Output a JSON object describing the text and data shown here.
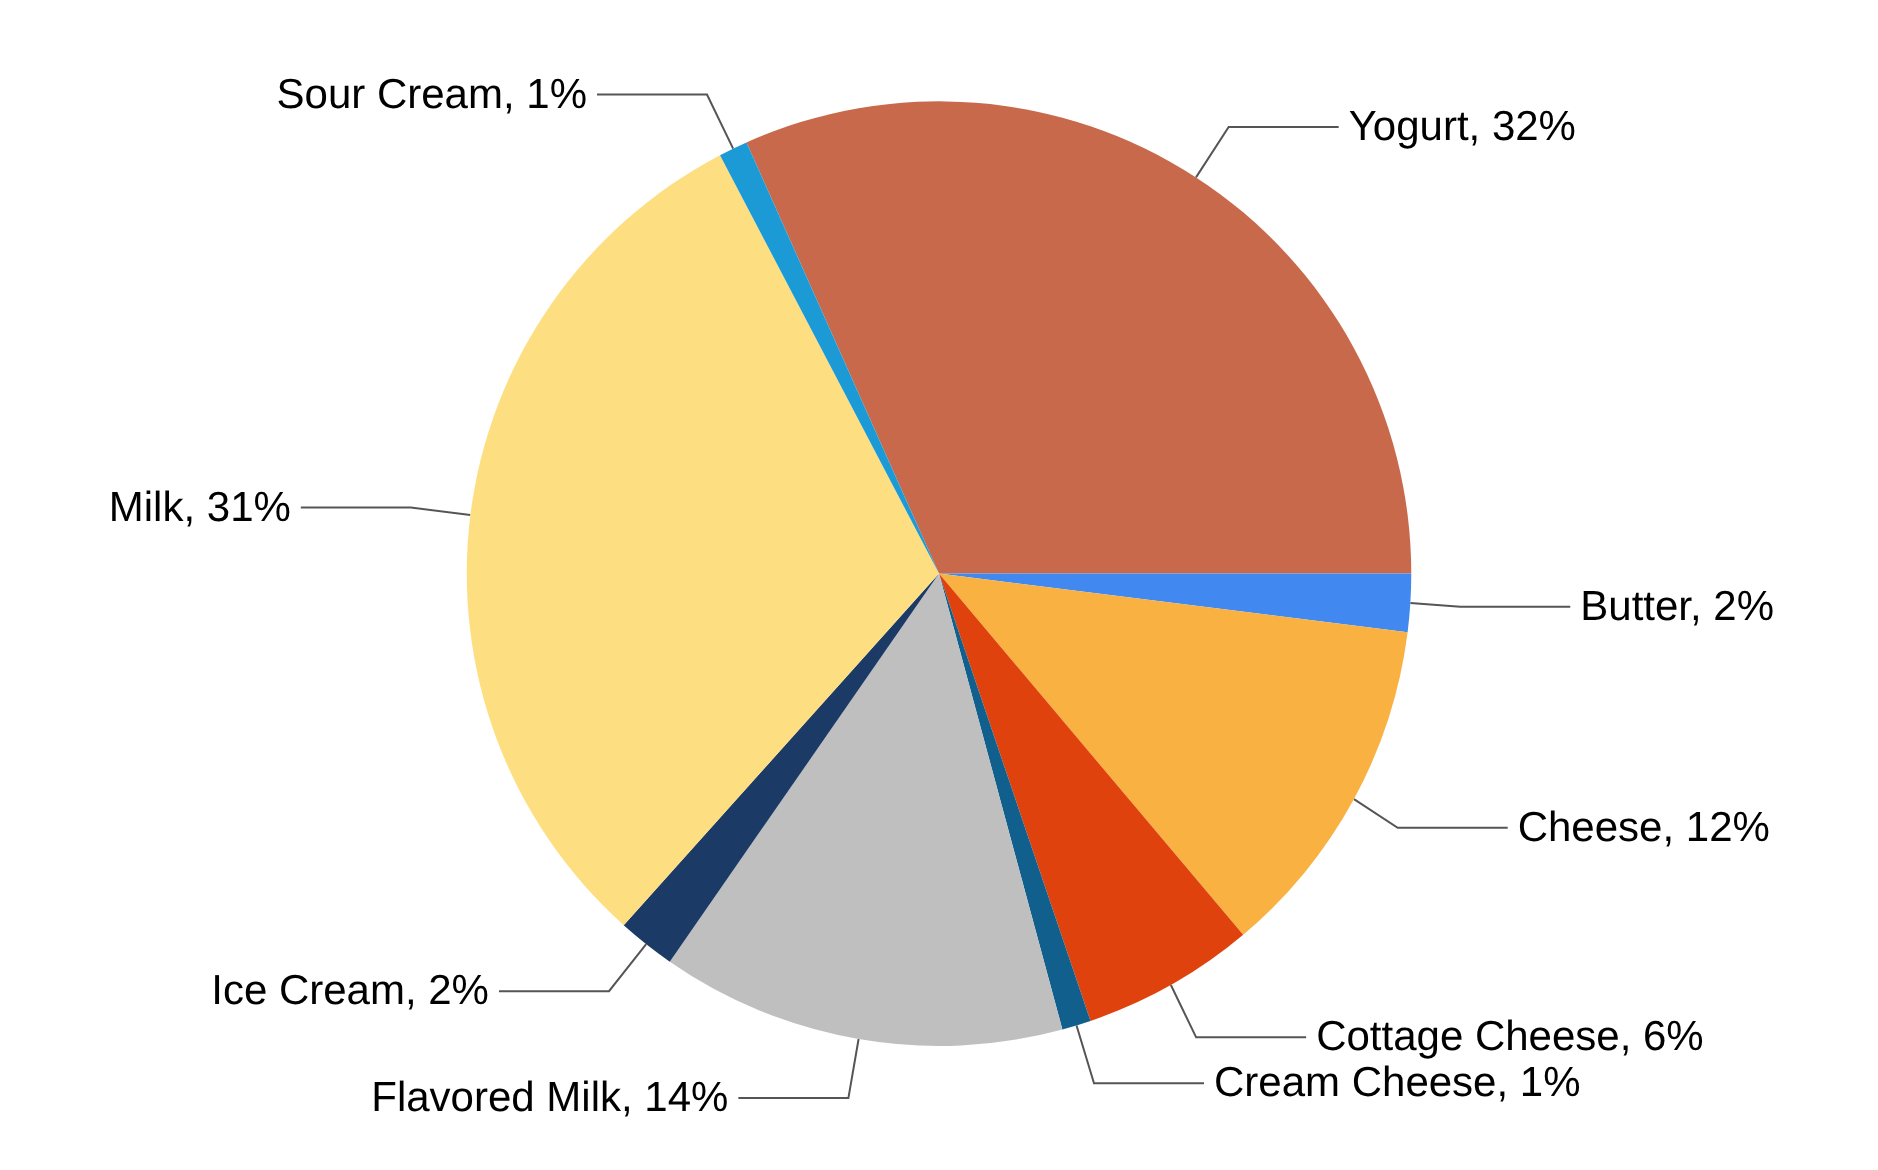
{
  "chart_data": {
    "type": "pie",
    "categories": [
      "Yogurt",
      "Butter",
      "Cheese",
      "Cottage Cheese",
      "Cream Cheese",
      "Flavored Milk",
      "Ice Cream",
      "Milk",
      "Sour Cream"
    ],
    "values": [
      32,
      2,
      12,
      6,
      1,
      14,
      2,
      31,
      1
    ],
    "value_labels": [
      "32%",
      "2%",
      "12%",
      "6%",
      "1%",
      "14%",
      "2%",
      "31%",
      "1%"
    ],
    "colors": [
      "#c8694b",
      "#4189f0",
      "#f9b141",
      "#e0420e",
      "#115f8c",
      "#bfbfbf",
      "#1c3a66",
      "#fddf82",
      "#1b9ad6"
    ],
    "legend": false
  }
}
